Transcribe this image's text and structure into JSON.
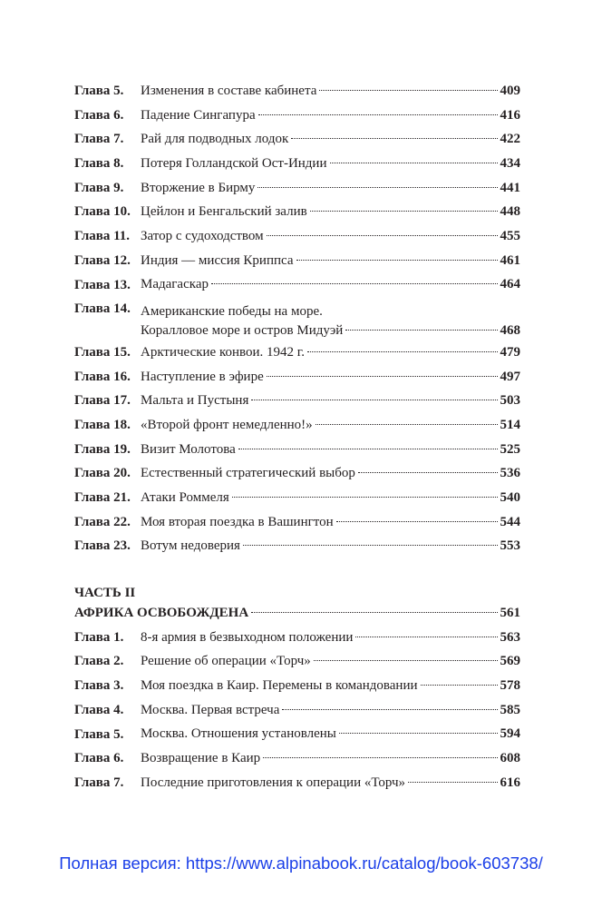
{
  "part1_entries": [
    {
      "label": "Глава 5.",
      "title": "Изменения в составе кабинета",
      "page": "409"
    },
    {
      "label": "Глава 6.",
      "title": "Падение Сингапура",
      "page": "416"
    },
    {
      "label": "Глава 7.",
      "title": "Рай для подводных лодок",
      "page": "422"
    },
    {
      "label": "Глава 8.",
      "title": "Потеря Голландской Ост-Индии",
      "page": "434"
    },
    {
      "label": "Глава 9.",
      "title": "Вторжение в Бирму",
      "page": "441"
    },
    {
      "label": "Глава 10.",
      "title": "Цейлон и Бенгальский залив",
      "page": "448"
    },
    {
      "label": "Глава 11.",
      "title": "Затор с судоходством",
      "page": "455"
    },
    {
      "label": "Глава 12.",
      "title": "Индия — миссия Криппса",
      "page": "461"
    },
    {
      "label": "Глава 13.",
      "title": "Мадагаскар",
      "page": "464"
    },
    {
      "label": "Глава 14.",
      "title_line1": "Американские победы на море.",
      "title": "Коралловое море и остров Мидуэй",
      "page": "468"
    },
    {
      "label": "Глава 15.",
      "title": "Арктические конвои. 1942 г.",
      "page": "479"
    },
    {
      "label": "Глава 16.",
      "title": "Наступление в эфире",
      "page": "497"
    },
    {
      "label": "Глава 17.",
      "title": "Мальта и Пустыня",
      "page": "503"
    },
    {
      "label": "Глава 18.",
      "title": "«Второй фронт немедленно!»",
      "page": "514"
    },
    {
      "label": "Глава 19.",
      "title": "Визит Молотова",
      "page": "525"
    },
    {
      "label": "Глава 20.",
      "title": "Естественный стратегический выбор",
      "page": "536"
    },
    {
      "label": "Глава 21.",
      "title": "Атаки Роммеля",
      "page": "540"
    },
    {
      "label": "Глава 22.",
      "title": "Моя вторая поездка в Вашингтон",
      "page": "544"
    },
    {
      "label": "Глава 23.",
      "title": "Вотум недоверия",
      "page": "553"
    }
  ],
  "part2": {
    "heading": "ЧАСТЬ II",
    "title": "АФРИКА ОСВОБОЖДЕНА",
    "page": "561",
    "entries": [
      {
        "label": "Глава 1.",
        "title": "8-я армия в безвыходном положении",
        "page": "563"
      },
      {
        "label": "Глава 2.",
        "title": "Решение об операции «Торч»",
        "page": "569"
      },
      {
        "label": "Глава 3.",
        "title": "Моя поездка в Каир. Перемены в командовании",
        "page": "578"
      },
      {
        "label": "Глава 4.",
        "title": "Москва. Первая встреча",
        "page": "585"
      },
      {
        "label": "Глава 5.",
        "title": "Москва. Отношения установлены",
        "page": "594"
      },
      {
        "label": "Глава 6.",
        "title": "Возвращение в Каир",
        "page": "608"
      },
      {
        "label": "Глава 7.",
        "title": "Последние приготовления к операции «Торч»",
        "page": "616"
      }
    ]
  },
  "footer": {
    "link_text": "Полная версия: https://www.alpinabook.ru/catalog/book-603738/",
    "color": "#1a3ee8"
  }
}
